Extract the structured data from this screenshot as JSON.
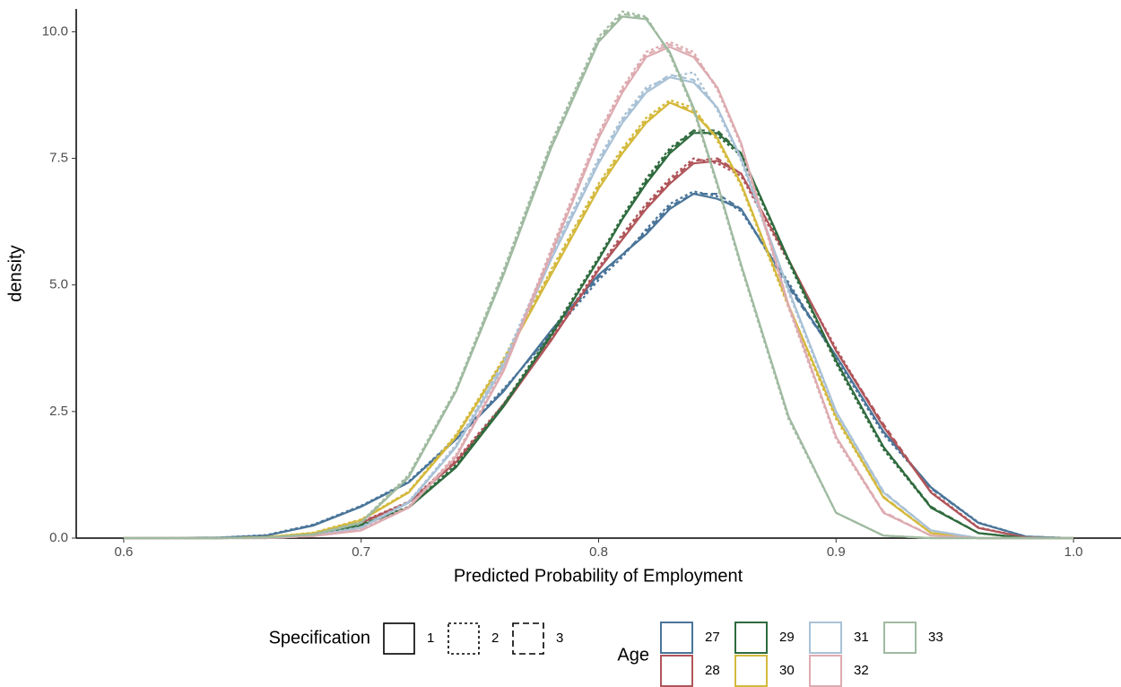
{
  "chart_data": {
    "type": "line",
    "xlabel": "Predicted Probability of Employment",
    "ylabel": "density",
    "x": [
      0.6,
      0.64,
      0.66,
      0.68,
      0.7,
      0.72,
      0.74,
      0.76,
      0.78,
      0.8,
      0.81,
      0.82,
      0.83,
      0.84,
      0.85,
      0.86,
      0.88,
      0.9,
      0.92,
      0.94,
      0.96,
      0.98,
      1.0
    ],
    "xlim": [
      0.58,
      1.02
    ],
    "xticks": [
      0.6,
      0.7,
      0.8,
      0.9,
      {
        "value": 1,
        "label": "1.0"
      }
    ],
    "ylim": [
      0,
      10.45
    ],
    "yticks": [
      {
        "value": 0,
        "label": "0.0"
      },
      2.5,
      {
        "value": 5,
        "label": "5.0"
      },
      7.5,
      {
        "value": 10,
        "label": "10.0"
      }
    ],
    "linetype_legend": {
      "title": "Specification",
      "labels": [
        "1",
        "2",
        "3"
      ],
      "dasharrays": [
        "none",
        "3 3",
        "7 4"
      ]
    },
    "color_legend_title": "Age",
    "series": [
      {
        "name": "27",
        "color": "#4a7599",
        "values": [
          [
            0,
            0.01,
            0.05,
            0.25,
            0.62,
            1.1,
            1.95,
            2.9,
            4.1,
            5.2,
            5.6,
            6.0,
            6.5,
            6.8,
            6.7,
            6.5,
            5.0,
            3.6,
            2.1,
            1.0,
            0.3,
            0.03,
            0
          ],
          [
            0,
            0.01,
            0.06,
            0.27,
            0.64,
            1.12,
            1.98,
            2.95,
            4.0,
            5.1,
            5.55,
            6.1,
            6.6,
            6.85,
            6.75,
            6.45,
            5.05,
            3.55,
            2.05,
            1.0,
            0.31,
            0.03,
            0
          ],
          [
            0,
            0.01,
            0.05,
            0.26,
            0.63,
            1.1,
            1.97,
            2.92,
            4.05,
            5.15,
            5.6,
            6.05,
            6.55,
            6.8,
            6.8,
            6.5,
            4.95,
            3.6,
            2.1,
            0.98,
            0.3,
            0.03,
            0
          ]
        ]
      },
      {
        "name": "28",
        "color": "#b0555a",
        "values": [
          [
            0,
            0,
            0.01,
            0.08,
            0.3,
            0.7,
            1.5,
            2.6,
            3.9,
            5.3,
            5.9,
            6.5,
            7.0,
            7.4,
            7.45,
            7.2,
            5.5,
            3.7,
            2.2,
            0.9,
            0.2,
            0.01,
            0
          ],
          [
            0,
            0,
            0.01,
            0.09,
            0.32,
            0.72,
            1.55,
            2.65,
            3.95,
            5.35,
            6.0,
            6.6,
            7.1,
            7.5,
            7.4,
            7.15,
            5.45,
            3.75,
            2.2,
            0.92,
            0.21,
            0.01,
            0
          ],
          [
            0,
            0,
            0.01,
            0.08,
            0.31,
            0.71,
            1.52,
            2.62,
            3.92,
            5.3,
            5.95,
            6.55,
            7.05,
            7.45,
            7.5,
            7.2,
            5.5,
            3.7,
            2.25,
            0.9,
            0.2,
            0.01,
            0
          ]
        ]
      },
      {
        "name": "29",
        "color": "#2f6b3e",
        "values": [
          [
            0,
            0,
            0.01,
            0.07,
            0.25,
            0.6,
            1.4,
            2.6,
            4.0,
            5.5,
            6.3,
            7.0,
            7.6,
            8.0,
            8.0,
            7.6,
            5.5,
            3.5,
            1.8,
            0.6,
            0.1,
            0,
            0
          ],
          [
            0,
            0,
            0.01,
            0.08,
            0.27,
            0.62,
            1.45,
            2.65,
            4.05,
            5.55,
            6.35,
            7.1,
            7.7,
            8.05,
            7.95,
            7.55,
            5.45,
            3.45,
            1.75,
            0.6,
            0.1,
            0,
            0
          ],
          [
            0,
            0,
            0.01,
            0.07,
            0.26,
            0.61,
            1.42,
            2.62,
            4.0,
            5.5,
            6.3,
            7.05,
            7.65,
            8.05,
            8.05,
            7.6,
            5.5,
            3.5,
            1.8,
            0.62,
            0.1,
            0,
            0
          ]
        ]
      },
      {
        "name": "30",
        "color": "#d4b93c",
        "values": [
          [
            0,
            0,
            0.02,
            0.1,
            0.35,
            0.9,
            2.0,
            3.5,
            5.2,
            6.9,
            7.6,
            8.2,
            8.6,
            8.4,
            7.9,
            7.0,
            4.6,
            2.4,
            0.8,
            0.1,
            0,
            0,
            0
          ],
          [
            0,
            0,
            0.02,
            0.11,
            0.37,
            0.92,
            2.05,
            3.55,
            5.3,
            7.0,
            7.7,
            8.3,
            8.65,
            8.5,
            7.85,
            6.95,
            4.55,
            2.35,
            0.8,
            0.1,
            0,
            0,
            0
          ],
          [
            0,
            0,
            0.02,
            0.1,
            0.36,
            0.91,
            2.02,
            3.52,
            5.25,
            6.95,
            7.65,
            8.25,
            8.6,
            8.45,
            7.9,
            7.0,
            4.6,
            2.4,
            0.82,
            0.1,
            0,
            0,
            0
          ]
        ]
      },
      {
        "name": "31",
        "color": "#a9c1d6",
        "values": [
          [
            0,
            0,
            0.01,
            0.05,
            0.2,
            0.7,
            1.8,
            3.4,
            5.5,
            7.4,
            8.2,
            8.8,
            9.1,
            9.0,
            8.5,
            7.5,
            4.9,
            2.5,
            0.9,
            0.15,
            0,
            0,
            0
          ],
          [
            0,
            0,
            0.01,
            0.06,
            0.22,
            0.72,
            1.85,
            3.5,
            5.6,
            7.5,
            8.3,
            8.9,
            9.1,
            9.2,
            8.45,
            7.45,
            4.85,
            2.45,
            0.9,
            0.15,
            0,
            0,
            0
          ],
          [
            0,
            0,
            0.01,
            0.05,
            0.21,
            0.71,
            1.82,
            3.45,
            5.55,
            7.45,
            8.25,
            8.85,
            9.15,
            9.05,
            8.5,
            7.5,
            4.9,
            2.5,
            0.92,
            0.15,
            0,
            0,
            0
          ]
        ]
      },
      {
        "name": "32",
        "color": "#ddabb0",
        "values": [
          [
            0,
            0,
            0,
            0.04,
            0.15,
            0.6,
            1.6,
            3.3,
            5.6,
            7.9,
            8.8,
            9.5,
            9.7,
            9.5,
            8.9,
            7.8,
            4.6,
            2.0,
            0.5,
            0.05,
            0,
            0,
            0
          ],
          [
            0,
            0,
            0,
            0.05,
            0.17,
            0.62,
            1.65,
            3.35,
            5.7,
            8.0,
            8.9,
            9.6,
            9.8,
            9.6,
            8.85,
            7.75,
            4.55,
            1.95,
            0.5,
            0.05,
            0,
            0,
            0
          ],
          [
            0,
            0,
            0,
            0.04,
            0.16,
            0.61,
            1.62,
            3.32,
            5.65,
            7.95,
            8.85,
            9.55,
            9.75,
            9.55,
            8.9,
            7.8,
            4.6,
            2.0,
            0.52,
            0.05,
            0,
            0,
            0
          ]
        ]
      },
      {
        "name": "33",
        "color": "#9fbaa0",
        "values": [
          [
            0,
            0,
            0.01,
            0.07,
            0.3,
            1.2,
            2.9,
            5.2,
            7.7,
            9.8,
            10.3,
            10.25,
            9.6,
            8.5,
            7.0,
            5.4,
            2.4,
            0.5,
            0.05,
            0,
            0,
            0,
            0
          ],
          [
            0,
            0,
            0.01,
            0.08,
            0.32,
            1.25,
            2.95,
            5.3,
            7.8,
            9.9,
            10.4,
            10.3,
            9.55,
            8.45,
            6.95,
            5.35,
            2.35,
            0.5,
            0.05,
            0,
            0,
            0,
            0
          ],
          [
            0,
            0,
            0.01,
            0.07,
            0.31,
            1.22,
            2.92,
            5.25,
            7.75,
            9.85,
            10.35,
            10.28,
            9.58,
            8.48,
            7.0,
            5.4,
            2.4,
            0.5,
            0.05,
            0,
            0,
            0,
            0
          ]
        ]
      }
    ]
  }
}
